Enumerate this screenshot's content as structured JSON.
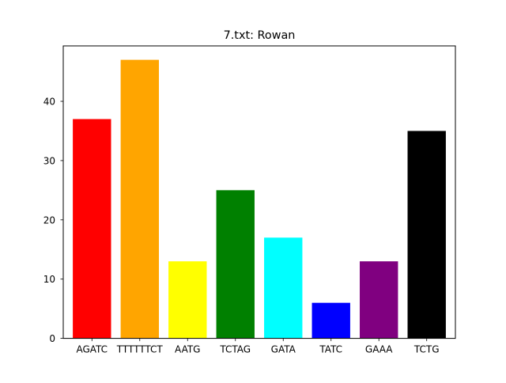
{
  "chart_data": {
    "type": "bar",
    "title": "7.txt: Rowan",
    "xlabel": "",
    "ylabel": "",
    "categories": [
      "AGATC",
      "TTTTTTCT",
      "AATG",
      "TCTAG",
      "GATA",
      "TATC",
      "GAAA",
      "TCTG"
    ],
    "values": [
      37,
      47,
      13,
      25,
      17,
      6,
      13,
      35
    ],
    "colors": [
      "#ff0000",
      "#ffa500",
      "#ffff00",
      "#008000",
      "#00ffff",
      "#0000ff",
      "#800080",
      "#000000"
    ],
    "ylim": [
      0,
      49.35
    ],
    "yticks": [
      0,
      10,
      20,
      30,
      40
    ],
    "grid": false,
    "legend": "none"
  }
}
